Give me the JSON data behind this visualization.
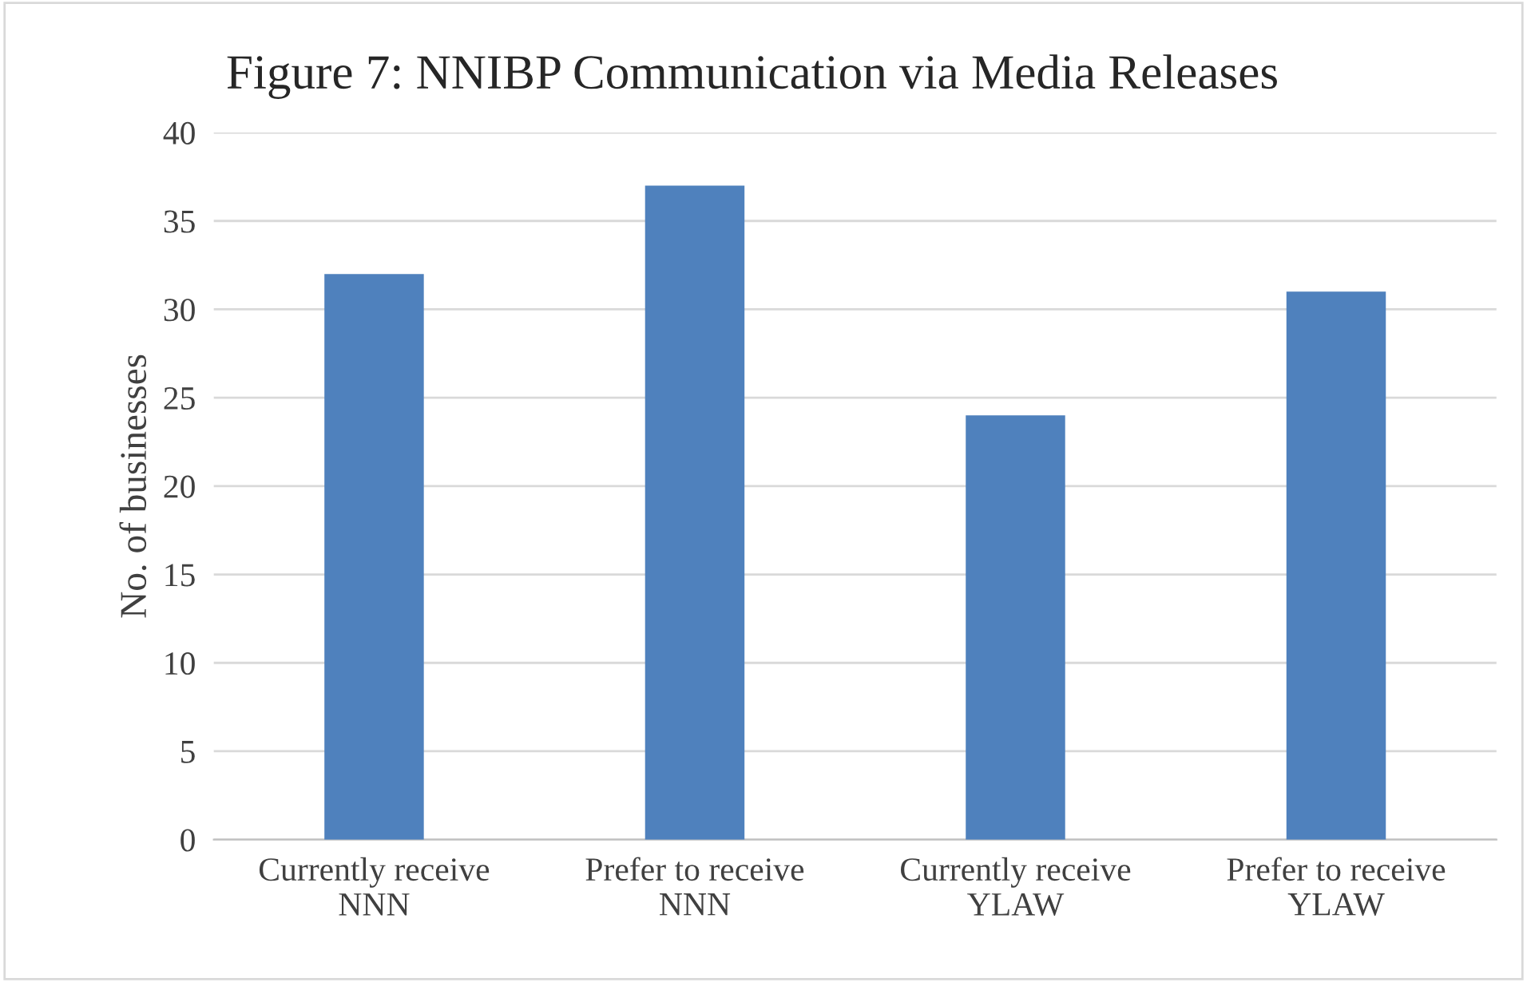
{
  "chart_data": {
    "type": "bar",
    "title": "Figure 7: NNIBP Communication via Media Releases",
    "ylabel": "No. of businesses",
    "categories": [
      "Currently receive\nNNN",
      "Prefer to receive\nNNN",
      "Currently receive\nYLAW",
      "Prefer to receive\nYLAW"
    ],
    "values": [
      32,
      37,
      24,
      31
    ],
    "color": "#4f81bd",
    "ylim": [
      0,
      40
    ],
    "yticks": [
      0,
      5,
      10,
      15,
      20,
      25,
      30,
      35,
      40
    ],
    "grid": "y"
  }
}
